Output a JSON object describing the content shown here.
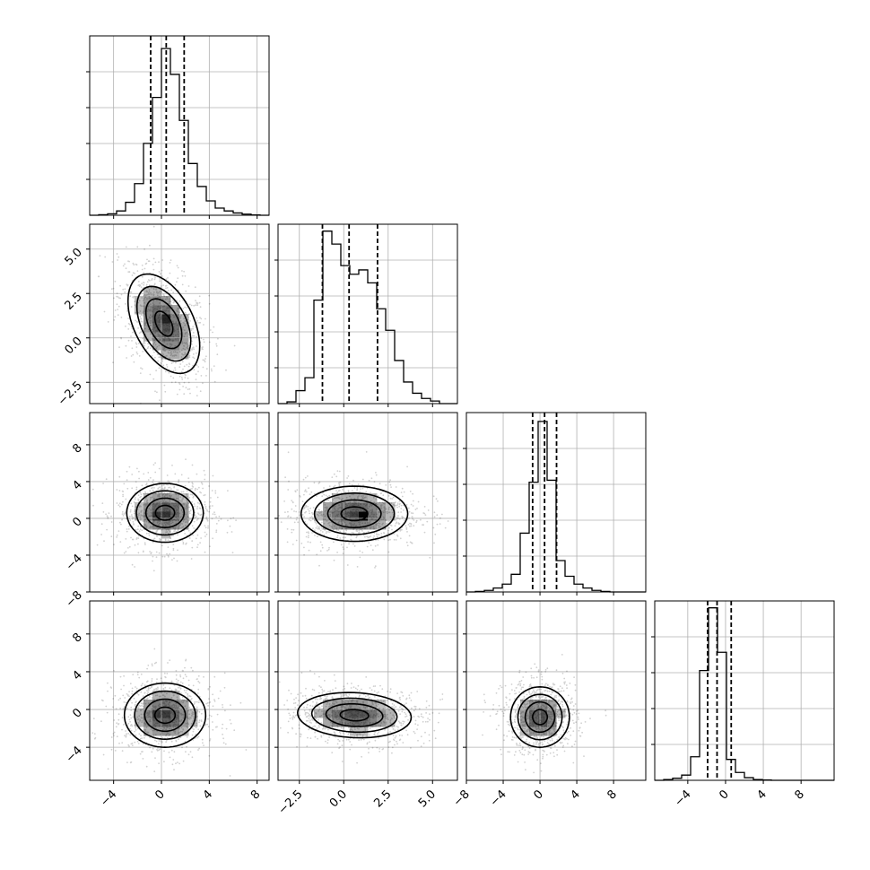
{
  "chart_data": {
    "type": "corner",
    "title": "",
    "colors": {
      "line": "#000000",
      "grid": "#b0b0b0",
      "scatter": "#000000",
      "density_dark": "#000000",
      "density_light": "#ffffff"
    },
    "grid": true,
    "parameters": [
      {
        "index": 0,
        "range": [
          -6,
          9
        ],
        "ticks": [
          -4,
          0,
          4,
          8
        ],
        "tick_labels": [
          "−4",
          "0",
          "4",
          "8"
        ]
      },
      {
        "index": 1,
        "range": [
          -3.7,
          6.4
        ],
        "ticks": [
          -2.5,
          0.0,
          2.5,
          5.0
        ],
        "tick_labels": [
          "−2.5",
          "0.0",
          "2.5",
          "5.0"
        ]
      },
      {
        "index": 2,
        "range": [
          -8,
          11.5
        ],
        "ticks": [
          -8,
          -4,
          0,
          4,
          8
        ],
        "tick_labels": [
          "−8",
          "−4",
          "0",
          "4",
          "8"
        ]
      },
      {
        "index": 3,
        "range": [
          -7.5,
          11.5
        ],
        "ticks": [
          -4,
          0,
          4,
          8
        ],
        "tick_labels": [
          "−4",
          "0",
          "4",
          "8"
        ]
      }
    ],
    "histograms": [
      {
        "parameter": 0,
        "bin_edges": [
          -6,
          -5.25,
          -4.5,
          -3.75,
          -3,
          -2.25,
          -1.5,
          -0.75,
          0,
          0.75,
          1.5,
          2.25,
          3,
          3.75,
          4.5,
          5.25,
          6,
          6.75,
          7.5,
          8.25,
          9
        ],
        "counts": [
          0,
          0.2,
          0.5,
          1.5,
          4.5,
          11,
          25,
          41,
          58,
          49,
          33,
          18,
          10,
          5,
          2.5,
          1.5,
          0.8,
          0.4,
          0.1,
          0
        ],
        "ymax": 60,
        "quantiles": [
          -0.9,
          0.4,
          1.9
        ]
      },
      {
        "parameter": 1,
        "bin_edges": [
          -3.7,
          -3.195,
          -2.69,
          -2.185,
          -1.68,
          -1.175,
          -0.67,
          -0.165,
          0.34,
          0.845,
          1.35,
          1.855,
          2.36,
          2.865,
          3.37,
          3.875,
          4.38,
          4.885,
          5.39,
          5.895,
          6.4
        ],
        "counts": [
          0,
          0.2,
          1.5,
          3,
          12,
          20,
          18.5,
          16,
          15,
          15.5,
          14,
          11,
          8.5,
          5,
          2.5,
          1.2,
          0.6,
          0.3,
          0,
          0
        ],
        "ymax": 20,
        "quantiles": [
          -1.2,
          0.3,
          1.9
        ]
      },
      {
        "parameter": 2,
        "bin_edges": [
          -8,
          -7.025,
          -6.05,
          -5.075,
          -4.1,
          -3.125,
          -2.15,
          -1.175,
          -0.2,
          0.775,
          1.75,
          2.725,
          3.7,
          4.675,
          5.65,
          6.625,
          7.6,
          8.575,
          9.55,
          10.525,
          11.5
        ],
        "counts": [
          0,
          0.3,
          0.8,
          2,
          4,
          9,
          30,
          56,
          87,
          57,
          16,
          8,
          4,
          2,
          0.8,
          0.3,
          0,
          0,
          0,
          0
        ],
        "ymax": 88,
        "quantiles": [
          -0.8,
          0.5,
          1.8
        ]
      },
      {
        "parameter": 3,
        "bin_edges": [
          -7.5,
          -6.55,
          -5.6,
          -4.65,
          -3.7,
          -2.75,
          -1.8,
          -0.85,
          0.1,
          1.05,
          2,
          2.95,
          3.9,
          4.85,
          5.8,
          6.75,
          7.7,
          8.65,
          9.6,
          10.55,
          11.5
        ],
        "counts": [
          0,
          0.3,
          0.8,
          2,
          9,
          42,
          66,
          49,
          8,
          3,
          1,
          0.3,
          0.1,
          0,
          0,
          0,
          0,
          0,
          0,
          0
        ],
        "ymax": 66,
        "quantiles": [
          -1.9,
          -0.9,
          0.6
        ]
      }
    ],
    "pairs": [
      {
        "x": 0,
        "y": 1,
        "center": [
          0.2,
          0.8
        ],
        "spread": [
          1.5,
          1.4
        ],
        "corr": -0.45,
        "peak": [
          0.1,
          1.0
        ]
      },
      {
        "x": 0,
        "y": 2,
        "center": [
          0.3,
          0.6
        ],
        "spread": [
          1.6,
          1.6
        ],
        "corr": 0.0,
        "peak": [
          0.0,
          0.4
        ]
      },
      {
        "x": 1,
        "y": 2,
        "center": [
          0.6,
          0.5
        ],
        "spread": [
          1.5,
          1.5
        ],
        "corr": 0.0,
        "peak": [
          1.0,
          0.3
        ]
      },
      {
        "x": 0,
        "y": 3,
        "center": [
          0.3,
          -0.6
        ],
        "spread": [
          1.7,
          1.7
        ],
        "corr": 0.0,
        "peak": [
          0.0,
          -0.6
        ]
      },
      {
        "x": 1,
        "y": 3,
        "center": [
          0.6,
          -0.6
        ],
        "spread": [
          1.6,
          1.2
        ],
        "corr": -0.1,
        "peak": [
          0.8,
          -0.8
        ]
      },
      {
        "x": 2,
        "y": 3,
        "center": [
          0.0,
          -0.8
        ],
        "spread": [
          1.6,
          1.6
        ],
        "corr": 0.0,
        "peak": [
          0.0,
          -0.8
        ]
      }
    ]
  }
}
